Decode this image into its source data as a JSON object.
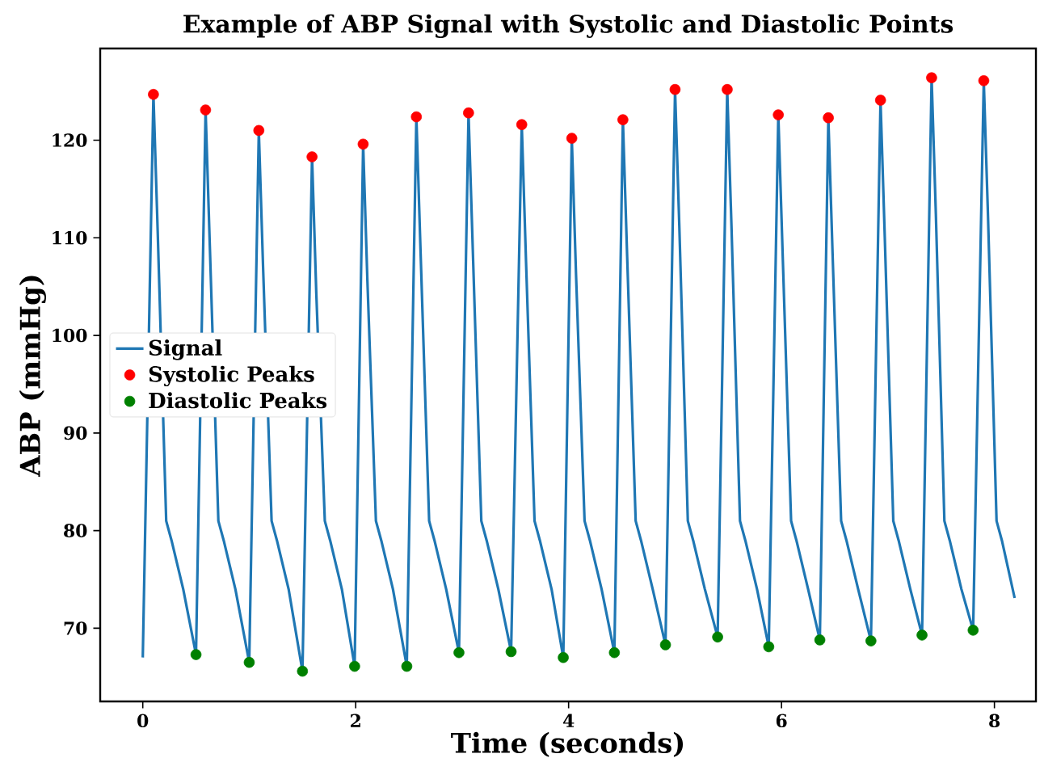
{
  "chart_data": {
    "type": "line",
    "title": "Example of ABP Signal with Systolic and Diastolic Points",
    "xlabel": "Time (seconds)",
    "ylabel": "ABP (mmHg)",
    "xlim": [
      -0.4,
      8.39
    ],
    "ylim": [
      62.5,
      129.4
    ],
    "xticks": [
      0,
      2,
      4,
      6,
      8
    ],
    "yticks": [
      70,
      80,
      90,
      100,
      110,
      120
    ],
    "grid": false,
    "legend": "center left",
    "series": [
      {
        "name": "Signal",
        "color": "#1f77b4",
        "marker": "none",
        "line_style": "solid",
        "x": [
          0,
          0.1,
          0.14,
          0.22,
          0.27,
          0.38,
          0.5,
          0.59,
          0.63,
          0.71,
          0.76,
          0.87,
          1.0,
          1.09,
          1.13,
          1.21,
          1.26,
          1.37,
          1.5,
          1.59,
          1.63,
          1.71,
          1.76,
          1.87,
          1.99,
          2.07,
          2.11,
          2.19,
          2.24,
          2.35,
          2.48,
          2.57,
          2.61,
          2.69,
          2.74,
          2.85,
          2.97,
          3.06,
          3.1,
          3.18,
          3.23,
          3.34,
          3.46,
          3.56,
          3.6,
          3.68,
          3.73,
          3.84,
          3.95,
          4.03,
          4.07,
          4.15,
          4.2,
          4.31,
          4.43,
          4.51,
          4.55,
          4.63,
          4.68,
          4.79,
          4.91,
          5.0,
          5.04,
          5.12,
          5.17,
          5.28,
          5.4,
          5.49,
          5.53,
          5.61,
          5.66,
          5.77,
          5.88,
          5.97,
          6.01,
          6.09,
          6.14,
          6.25,
          6.36,
          6.44,
          6.48,
          6.56,
          6.61,
          6.72,
          6.84,
          6.93,
          6.97,
          7.05,
          7.1,
          7.21,
          7.32,
          7.41,
          7.45,
          7.53,
          7.58,
          7.69,
          7.8,
          7.9,
          7.94,
          8.02,
          8.07,
          8.19
        ],
        "values": [
          67.0,
          124.7,
          110.7,
          81,
          79,
          74,
          67.3,
          123.1,
          109.1,
          81,
          79,
          74,
          66.5,
          121.0,
          107.0,
          81,
          79,
          74,
          65.6,
          118.3,
          104.3,
          81,
          79,
          74,
          66.1,
          119.6,
          105.6,
          81,
          79,
          74,
          66.1,
          122.4,
          108.4,
          81,
          79,
          74,
          67.5,
          122.8,
          108.8,
          81,
          79,
          74,
          67.6,
          121.6,
          107.6,
          81,
          79,
          74,
          67.0,
          120.2,
          106.2,
          81,
          79,
          74,
          67.5,
          122.1,
          108.1,
          81,
          79,
          74,
          68.3,
          125.2,
          111.2,
          81,
          79,
          74,
          69.1,
          125.2,
          111.2,
          81,
          79,
          74,
          68.1,
          122.6,
          108.6,
          81,
          79,
          74,
          68.8,
          122.3,
          108.3,
          81,
          79,
          74,
          68.7,
          124.1,
          110.1,
          81,
          79,
          74,
          69.3,
          126.4,
          112.4,
          81,
          79,
          74,
          69.8,
          126.1,
          112.1,
          81,
          79,
          73.1
        ]
      },
      {
        "name": "Systolic Peaks",
        "type": "scatter",
        "color": "#ff0000",
        "marker": "circle",
        "x": [
          0.1,
          0.59,
          1.09,
          1.59,
          2.07,
          2.57,
          3.06,
          3.56,
          4.03,
          4.51,
          5.0,
          5.49,
          5.97,
          6.44,
          6.93,
          7.41,
          7.9
        ],
        "values": [
          124.7,
          123.1,
          121.0,
          118.3,
          119.6,
          122.4,
          122.8,
          121.6,
          120.2,
          122.1,
          125.2,
          125.2,
          122.6,
          122.3,
          124.1,
          126.4,
          126.1
        ]
      },
      {
        "name": "Diastolic Peaks",
        "type": "scatter",
        "color": "#008000",
        "marker": "circle",
        "x": [
          0.5,
          1.0,
          1.5,
          1.99,
          2.48,
          2.97,
          3.46,
          3.95,
          4.43,
          4.91,
          5.4,
          5.88,
          6.36,
          6.84,
          7.32,
          7.8
        ],
        "values": [
          67.3,
          66.5,
          65.6,
          66.1,
          66.1,
          67.5,
          67.6,
          67.0,
          67.5,
          68.3,
          69.1,
          68.1,
          68.8,
          68.7,
          69.3,
          69.8
        ]
      }
    ]
  }
}
